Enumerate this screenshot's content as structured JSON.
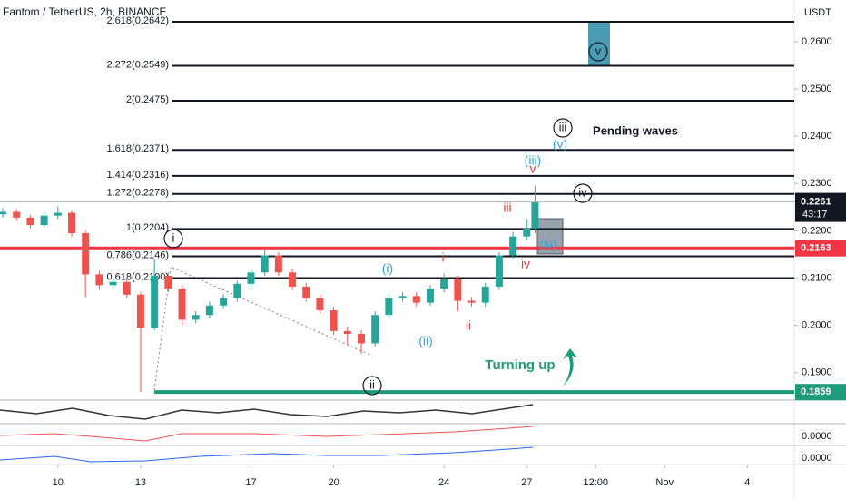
{
  "chart_data": {
    "type": "candlestick",
    "title": "Fantom / TetherUS, 2h, BINANCE",
    "currency": "USDT",
    "x": [
      -2,
      -1.5,
      -1,
      -0.5,
      0,
      0.5,
      1,
      1.5,
      2,
      2.5,
      3,
      3.5,
      4,
      4.5,
      5,
      5.5,
      6,
      6.5,
      7,
      7.5,
      8,
      8.5,
      9,
      9.5,
      10,
      10.5,
      11,
      11.5,
      12,
      12.5,
      13,
      13.5,
      14,
      14.5,
      15,
      15.5,
      16,
      16.5,
      17,
      17.3
    ],
    "open": [
      0.2235,
      0.224,
      0.2228,
      0.2212,
      0.2232,
      0.2238,
      0.2195,
      0.2108,
      0.2085,
      0.2092,
      0.2065,
      0.1995,
      0.2105,
      0.2078,
      0.2012,
      0.2022,
      0.2042,
      0.2058,
      0.2088,
      0.2112,
      0.2148,
      0.2112,
      0.2082,
      0.2058,
      0.2032,
      0.1988,
      0.1982,
      0.1962,
      0.2022,
      0.2058,
      0.2062,
      0.2048,
      0.2078,
      0.2098,
      0.2052,
      0.2048,
      0.2082,
      0.2148,
      0.2188,
      0.2205
    ],
    "high": [
      0.2248,
      0.2246,
      0.2234,
      0.224,
      0.2252,
      0.2242,
      0.22,
      0.2115,
      0.21,
      0.2098,
      0.207,
      0.214,
      0.2112,
      0.2085,
      0.203,
      0.205,
      0.2066,
      0.2095,
      0.212,
      0.2165,
      0.2155,
      0.212,
      0.209,
      0.2065,
      0.204,
      0.1998,
      0.199,
      0.203,
      0.2066,
      0.207,
      0.207,
      0.2085,
      0.211,
      0.2105,
      0.206,
      0.209,
      0.2155,
      0.2198,
      0.2225,
      0.2295
    ],
    "low": [
      0.2228,
      0.2222,
      0.2205,
      0.2208,
      0.2225,
      0.2188,
      0.206,
      0.2075,
      0.2078,
      0.2058,
      0.1859,
      0.199,
      0.207,
      0.2,
      0.2005,
      0.2015,
      0.2035,
      0.205,
      0.208,
      0.2105,
      0.2105,
      0.2075,
      0.205,
      0.2025,
      0.198,
      0.196,
      0.194,
      0.1955,
      0.2015,
      0.205,
      0.204,
      0.2042,
      0.207,
      0.203,
      0.204,
      0.204,
      0.2075,
      0.214,
      0.218,
      0.2195
    ],
    "close": [
      0.224,
      0.2228,
      0.2212,
      0.2232,
      0.2238,
      0.2195,
      0.2108,
      0.2085,
      0.2092,
      0.2065,
      0.1995,
      0.2105,
      0.2078,
      0.2012,
      0.2022,
      0.2042,
      0.2058,
      0.2088,
      0.2112,
      0.2148,
      0.2112,
      0.2082,
      0.2058,
      0.2032,
      0.1988,
      0.1982,
      0.1962,
      0.2022,
      0.2058,
      0.2062,
      0.2048,
      0.2078,
      0.2098,
      0.2052,
      0.2048,
      0.2082,
      0.2148,
      0.2188,
      0.2205,
      0.2261
    ],
    "colors": {
      "up": "#26a69a",
      "down": "#ef5350"
    },
    "xlim": [
      -2.1,
      26.7
    ],
    "xticks": [
      {
        "value": 0,
        "label": "10"
      },
      {
        "value": 3,
        "label": "13"
      },
      {
        "value": 7,
        "label": "17"
      },
      {
        "value": 10,
        "label": "20"
      },
      {
        "value": 14,
        "label": "24"
      },
      {
        "value": 17,
        "label": "27"
      },
      {
        "value": 19.5,
        "label": "12:00"
      },
      {
        "value": 22,
        "label": "Nov"
      },
      {
        "value": 25,
        "label": "4"
      }
    ],
    "ylim": [
      0.1844,
      0.2688
    ],
    "yticks": [
      {
        "value": 0.19,
        "label": "0.1900"
      },
      {
        "value": 0.2,
        "label": "0.2000"
      },
      {
        "value": 0.21,
        "label": "0.2100"
      },
      {
        "value": 0.22,
        "label": "0.2200"
      },
      {
        "value": 0.23,
        "label": "0.2300"
      },
      {
        "value": 0.24,
        "label": "0.2400"
      },
      {
        "value": 0.25,
        "label": "0.2500"
      },
      {
        "value": 0.26,
        "label": "0.2600"
      }
    ],
    "fib_levels": [
      {
        "value": 0.2642,
        "label": "2.618(0.2642)"
      },
      {
        "value": 0.2549,
        "label": "2.272(0.2549)"
      },
      {
        "value": 0.2475,
        "label": "2(0.2475)"
      },
      {
        "value": 0.2371,
        "label": "1.618(0.2371)"
      },
      {
        "value": 0.2316,
        "label": "1.414(0.2316)"
      },
      {
        "value": 0.2278,
        "label": "1.272(0.2278)"
      },
      {
        "value": 0.2204,
        "label": "1(0.2204)"
      },
      {
        "value": 0.2146,
        "label": "0.786(0.2146)"
      },
      {
        "value": 0.21,
        "label": "0.618(0.2100)"
      }
    ],
    "resistance": {
      "value": 0.2163,
      "label": "0.2163",
      "color": "#f23645"
    },
    "support": {
      "value": 0.1859,
      "label": "0.1859",
      "color": "#1e9b7a"
    },
    "last_price": {
      "value": 0.2261,
      "label": "0.2261",
      "countdown": "43:17"
    },
    "annotations": [
      "i",
      "ii",
      "iii",
      "iv",
      "v",
      "(i)",
      "(ii)",
      "(iii)",
      "(iv)",
      "(v)",
      "i",
      "ii",
      "iii",
      "iv",
      "v",
      "Pending waves",
      "Turning up"
    ],
    "indicator_labels": [
      "0.0000",
      "0.0000"
    ]
  }
}
